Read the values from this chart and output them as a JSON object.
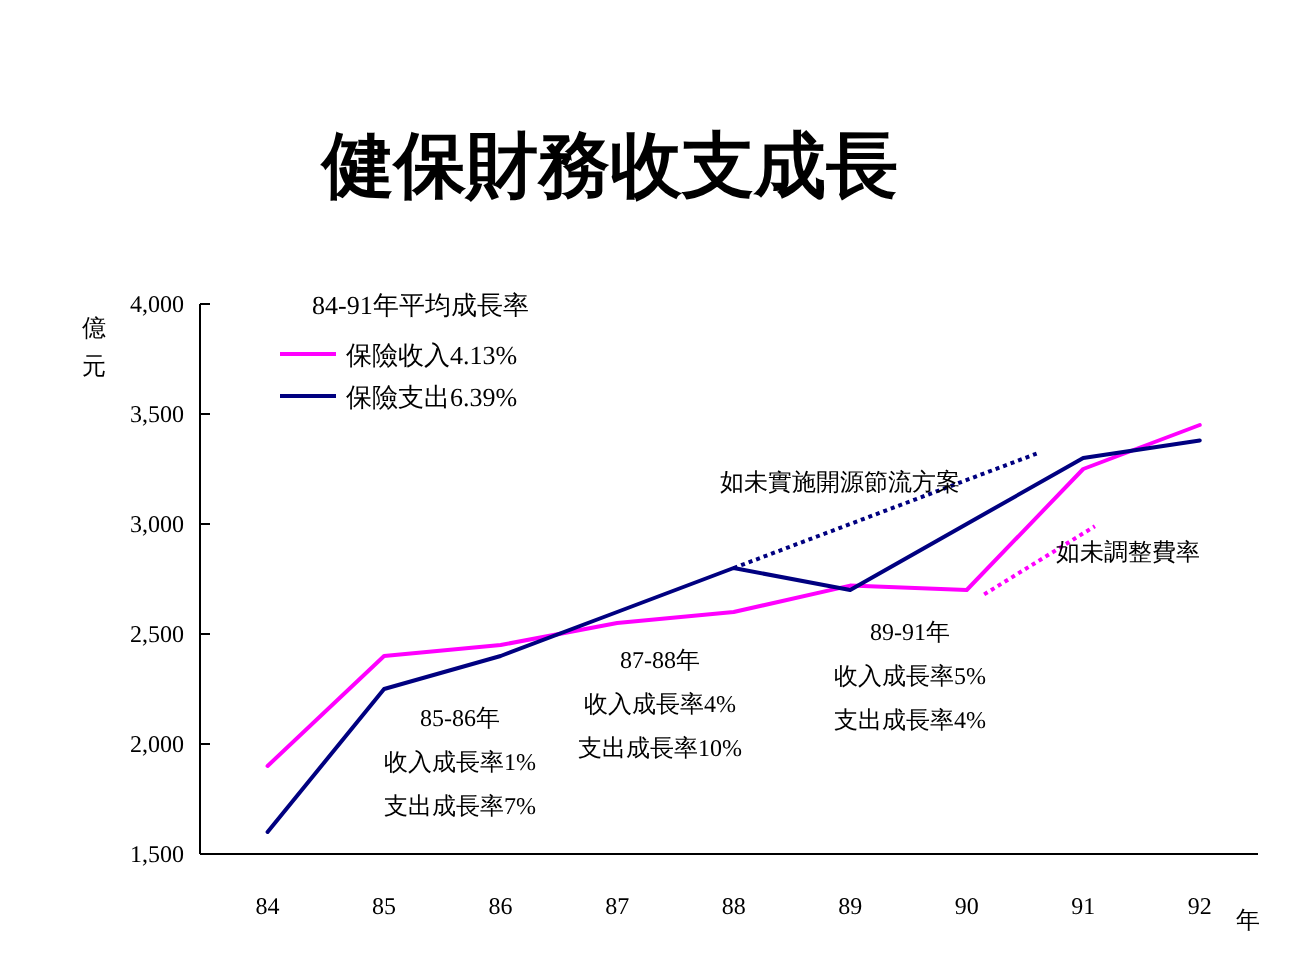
{
  "chart_data": {
    "type": "line",
    "title": "健保財務收支成長",
    "xlabel": "年",
    "ylabel": "億元",
    "legend_title": "84-91年平均成長率",
    "legend": "top left",
    "grid": false,
    "x": [
      84,
      85,
      86,
      87,
      88,
      89,
      90,
      91,
      92
    ],
    "xlim": [
      83.42,
      92.5
    ],
    "xticks": [
      84,
      85,
      86,
      87,
      88,
      89,
      90,
      91,
      92
    ],
    "ylim": [
      1500,
      4000
    ],
    "yticks": [
      {
        "value": 1500,
        "label": "1,500"
      },
      {
        "value": 2000,
        "label": "2,000"
      },
      {
        "value": 2500,
        "label": "2,500"
      },
      {
        "value": 3000,
        "label": "3,000"
      },
      {
        "value": 3500,
        "label": "3,500"
      },
      {
        "value": 4000,
        "label": "4,000"
      }
    ],
    "series": [
      {
        "name": "保險收入4.13%",
        "color": "#ff00ff",
        "values": [
          1900,
          2400,
          2450,
          2550,
          2600,
          2720,
          2700,
          3250,
          3450
        ]
      },
      {
        "name": "保險支出6.39%",
        "color": "#000080",
        "values": [
          1600,
          2250,
          2400,
          2600,
          2800,
          2700,
          3000,
          3300,
          3380
        ]
      },
      {
        "color": "#000080",
        "line_style": "dotted",
        "x": [
          88,
          90.6
        ],
        "values": [
          2800,
          3320
        ]
      },
      {
        "color": "#ff00ff",
        "line_style": "dotted",
        "x": [
          90.15,
          91.1
        ],
        "values": [
          2680,
          2990
        ]
      }
    ],
    "annotations": [
      "如未實施開源節流方案",
      "如未調整費率",
      "85-86年",
      "收入成長率1%",
      "支出成長率7%",
      "87-88年",
      "收入成長率4%",
      "支出成長率10%",
      "89-91年",
      "收入成長率5%",
      "支出成長率4%"
    ]
  }
}
